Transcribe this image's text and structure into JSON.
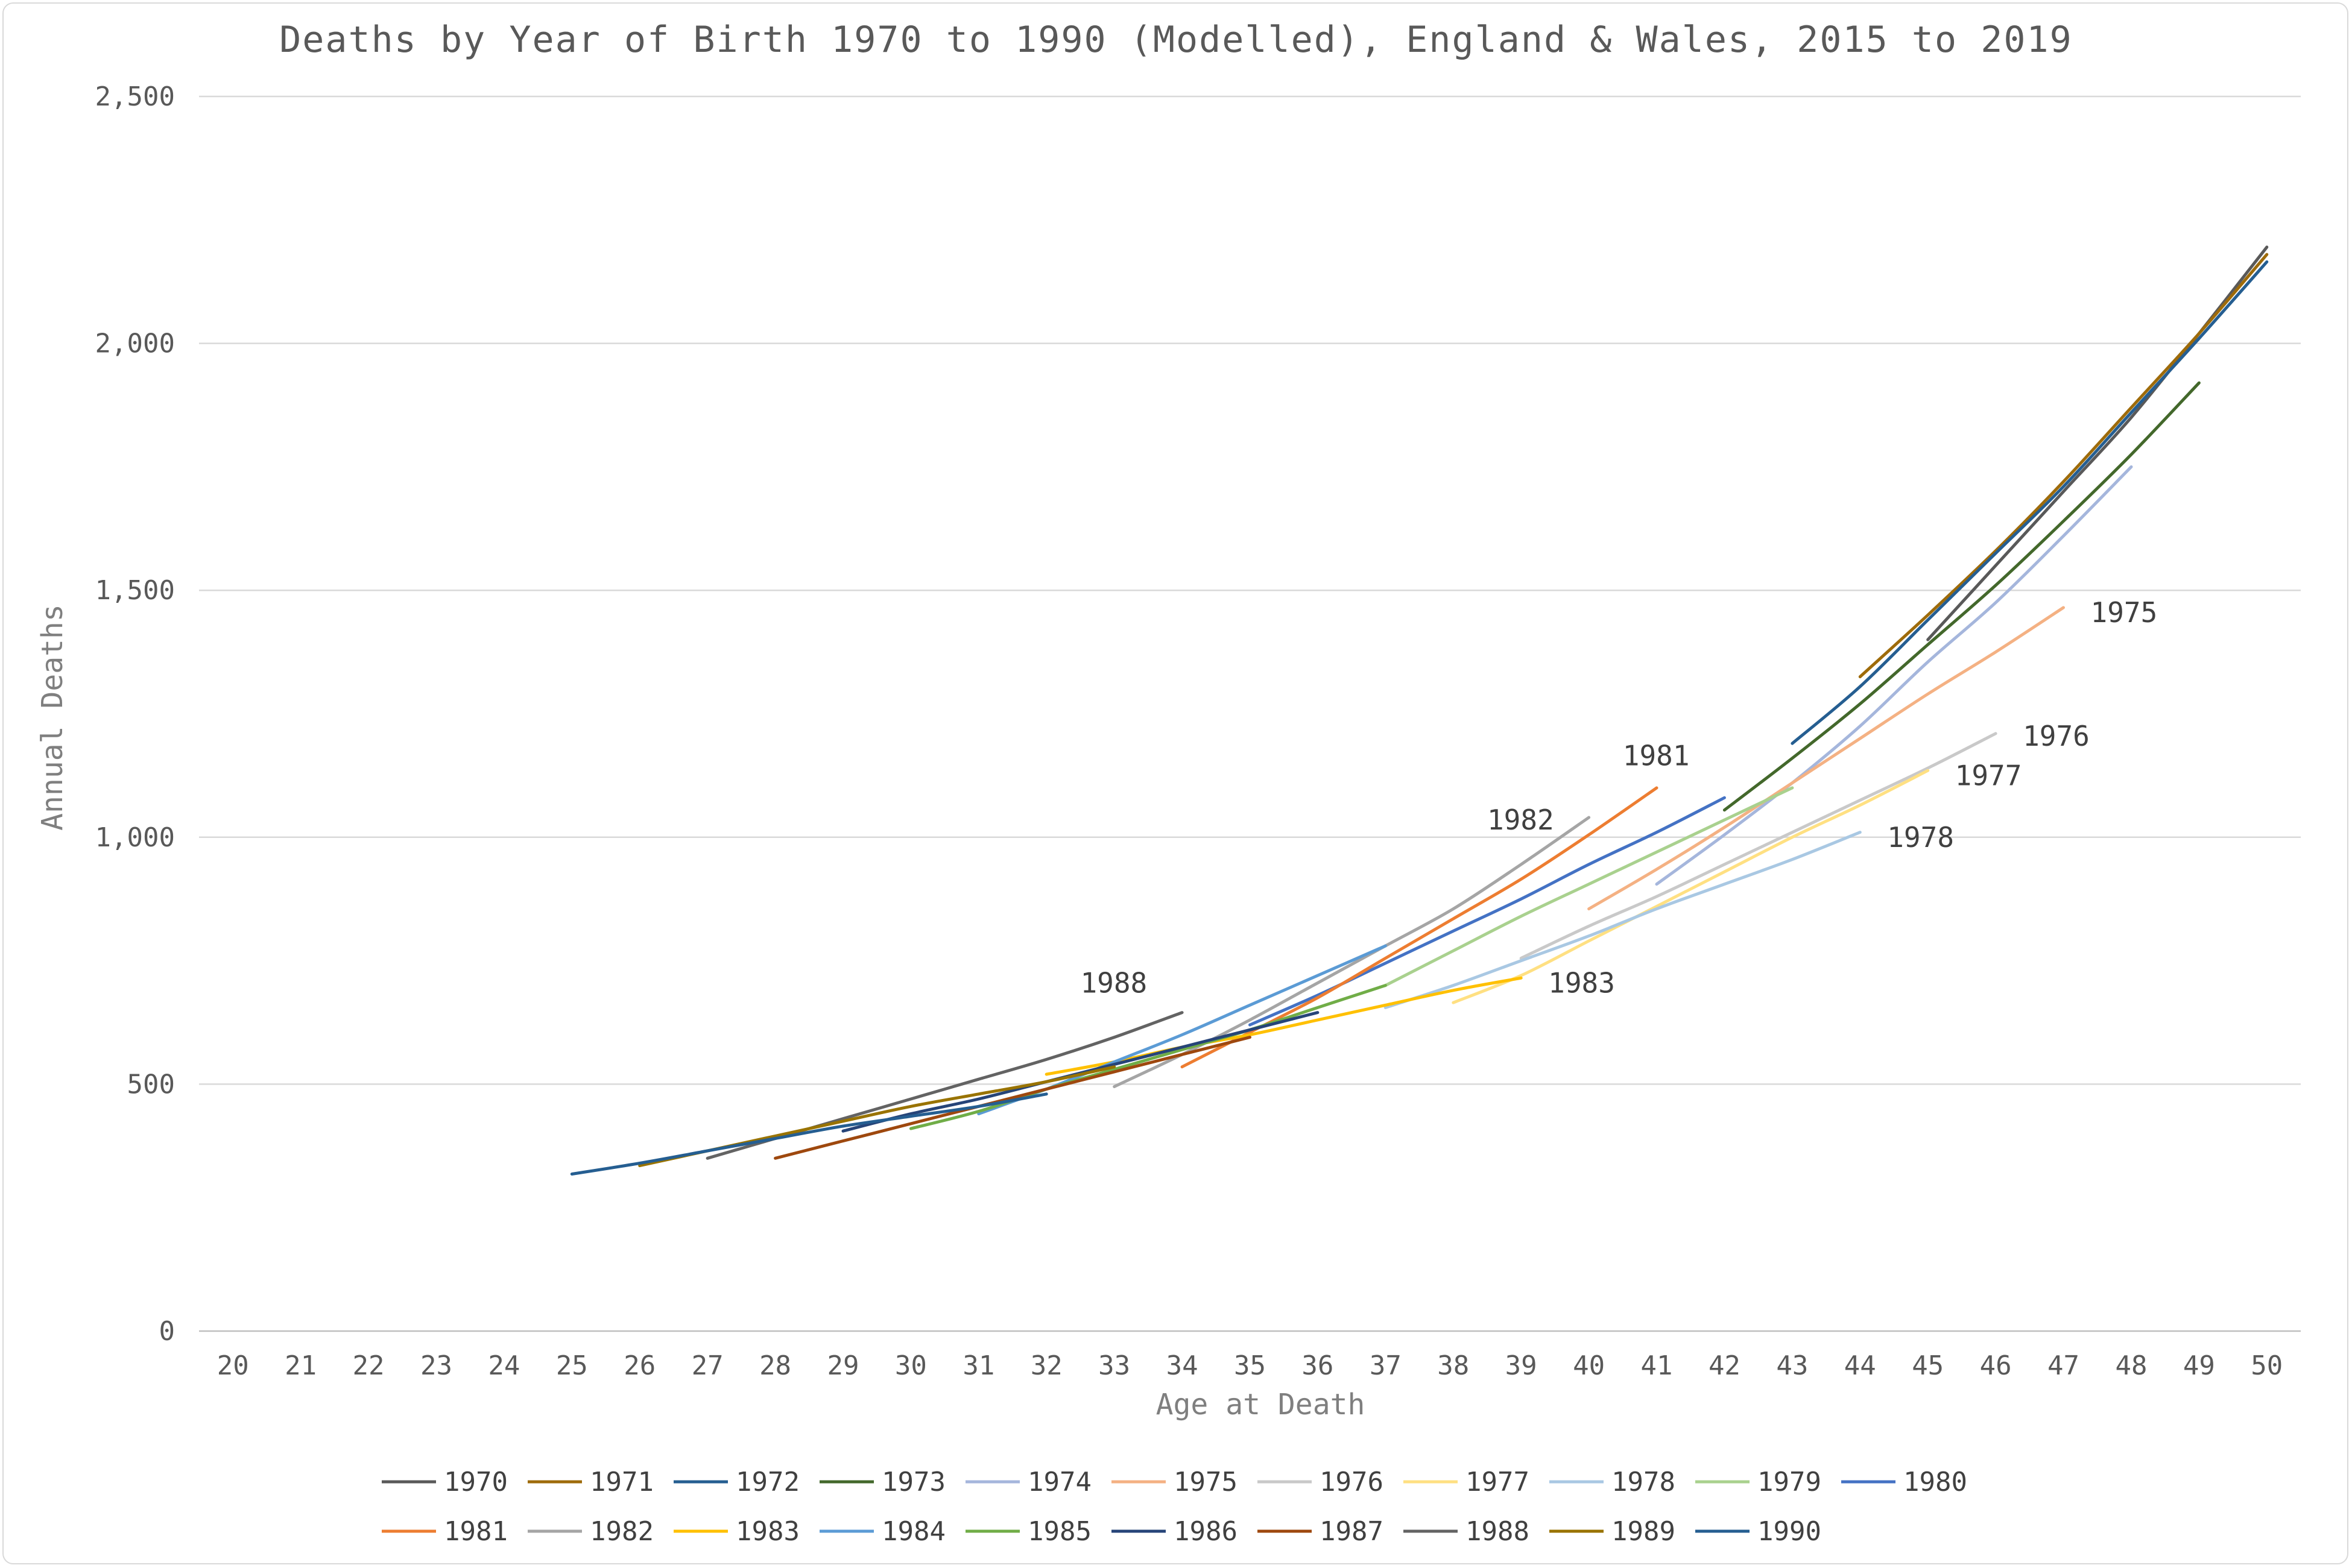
{
  "chart_data": {
    "type": "line",
    "title": "Deaths by Year of Birth 1970 to 1990 (Modelled), England & Wales, 2015 to 2019",
    "xlabel": "Age at Death",
    "ylabel": "Annual Deaths",
    "xlim": [
      20,
      50
    ],
    "ylim": [
      0,
      2500
    ],
    "x_ticks": [
      "20",
      "21",
      "22",
      "23",
      "24",
      "25",
      "26",
      "27",
      "28",
      "29",
      "30",
      "31",
      "32",
      "33",
      "34",
      "35",
      "36",
      "37",
      "38",
      "39",
      "40",
      "41",
      "42",
      "43",
      "44",
      "45",
      "46",
      "47",
      "48",
      "49",
      "50"
    ],
    "y_ticks": [
      {
        "value": 0,
        "label": "0"
      },
      {
        "value": 500,
        "label": "500"
      },
      {
        "value": 1000,
        "label": "1,000"
      },
      {
        "value": 1500,
        "label": "1,500"
      },
      {
        "value": 2000,
        "label": "2,000"
      },
      {
        "value": 2500,
        "label": "2,500"
      }
    ],
    "grid": true,
    "legend": "bottom",
    "series": [
      {
        "name": "1970",
        "color": "#595959",
        "x": [
          45,
          46,
          47,
          48,
          49,
          50
        ],
        "y": [
          1400,
          1550,
          1700,
          1850,
          2020,
          2195
        ]
      },
      {
        "name": "1971",
        "color": "#9e6b0a",
        "x": [
          44,
          45,
          46,
          47,
          48,
          49,
          50
        ],
        "y": [
          1325,
          1450,
          1580,
          1720,
          1870,
          2020,
          2180
        ]
      },
      {
        "name": "1972",
        "color": "#255e91",
        "x": [
          43,
          44,
          45,
          46,
          47,
          48,
          49,
          50
        ],
        "y": [
          1190,
          1305,
          1440,
          1575,
          1710,
          1860,
          2010,
          2165
        ]
      },
      {
        "name": "1973",
        "color": "#43682b",
        "x": [
          42,
          43,
          44,
          45,
          46,
          47,
          48,
          49
        ],
        "y": [
          1055,
          1160,
          1270,
          1390,
          1510,
          1640,
          1775,
          1920
        ]
      },
      {
        "name": "1974",
        "color": "#a5b6dc",
        "x": [
          41,
          42,
          43,
          44,
          45,
          46,
          47,
          48
        ],
        "y": [
          905,
          1005,
          1110,
          1225,
          1355,
          1475,
          1610,
          1750
        ]
      },
      {
        "name": "1975",
        "color": "#f4b183",
        "x": [
          40,
          41,
          42,
          43,
          44,
          45,
          46,
          47
        ],
        "y": [
          855,
          935,
          1020,
          1110,
          1200,
          1290,
          1375,
          1465
        ]
      },
      {
        "name": "1976",
        "color": "#c9c9c9",
        "x": [
          39,
          40,
          41,
          42,
          43,
          44,
          45,
          46
        ],
        "y": [
          755,
          820,
          880,
          945,
          1010,
          1075,
          1140,
          1210
        ]
      },
      {
        "name": "1977",
        "color": "#ffe082",
        "x": [
          38,
          39,
          40,
          41,
          42,
          43,
          44,
          45
        ],
        "y": [
          665,
          720,
          790,
          860,
          930,
          1000,
          1065,
          1135
        ]
      },
      {
        "name": "1978",
        "color": "#a9c8e3",
        "x": [
          37,
          38,
          39,
          40,
          41,
          42,
          43,
          44
        ],
        "y": [
          655,
          700,
          750,
          800,
          855,
          905,
          955,
          1010
        ]
      },
      {
        "name": "1979",
        "color": "#a9d18e",
        "x": [
          37,
          38,
          39,
          40,
          41,
          42,
          43
        ],
        "y": [
          700,
          770,
          840,
          905,
          970,
          1035,
          1100
        ]
      },
      {
        "name": "1980",
        "color": "#4472c4",
        "x": [
          35,
          36,
          37,
          38,
          39,
          40,
          41,
          42
        ],
        "y": [
          620,
          680,
          745,
          810,
          875,
          945,
          1010,
          1080
        ]
      },
      {
        "name": "1981",
        "color": "#ed7d31",
        "x": [
          34,
          35,
          36,
          37,
          38,
          39,
          40,
          41
        ],
        "y": [
          535,
          605,
          675,
          755,
          835,
          915,
          1005,
          1100
        ]
      },
      {
        "name": "1982",
        "color": "#a5a5a5",
        "x": [
          33,
          34,
          35,
          36,
          37,
          38,
          39,
          40
        ],
        "y": [
          495,
          560,
          630,
          705,
          780,
          855,
          945,
          1040
        ]
      },
      {
        "name": "1983",
        "color": "#ffc000",
        "x": [
          32,
          33,
          34,
          35,
          36,
          37,
          38,
          39
        ],
        "y": [
          520,
          545,
          575,
          600,
          630,
          660,
          690,
          715
        ]
      },
      {
        "name": "1984",
        "color": "#5b9bd5",
        "x": [
          31,
          32,
          33,
          34,
          35,
          36,
          37
        ],
        "y": [
          440,
          490,
          545,
          600,
          660,
          720,
          780
        ]
      },
      {
        "name": "1985",
        "color": "#70ad47",
        "x": [
          30,
          31,
          32,
          33,
          34,
          35,
          36,
          37
        ],
        "y": [
          410,
          445,
          490,
          530,
          570,
          610,
          655,
          700
        ]
      },
      {
        "name": "1986",
        "color": "#264478",
        "x": [
          29,
          30,
          31,
          32,
          33,
          34,
          35,
          36
        ],
        "y": [
          405,
          440,
          470,
          505,
          540,
          575,
          610,
          645
        ]
      },
      {
        "name": "1987",
        "color": "#9e480e",
        "x": [
          28,
          29,
          30,
          31,
          32,
          33,
          34,
          35
        ],
        "y": [
          350,
          385,
          420,
          455,
          490,
          525,
          560,
          595
        ]
      },
      {
        "name": "1988",
        "color": "#636363",
        "x": [
          27,
          28,
          29,
          30,
          31,
          32,
          33,
          34
        ],
        "y": [
          350,
          390,
          430,
          470,
          510,
          550,
          595,
          645
        ]
      },
      {
        "name": "1989",
        "color": "#997300",
        "x": [
          26,
          27,
          28,
          29,
          30,
          31,
          32,
          33
        ],
        "y": [
          335,
          365,
          395,
          425,
          455,
          480,
          505,
          535
        ]
      },
      {
        "name": "1990",
        "color": "#255e91",
        "x": [
          25,
          26,
          27,
          28,
          29,
          30,
          31,
          32
        ],
        "y": [
          318,
          340,
          365,
          390,
          415,
          435,
          455,
          480
        ]
      }
    ],
    "annotations": [
      {
        "text": "1975",
        "x": 47.4,
        "y": 1455
      },
      {
        "text": "1976",
        "x": 46.4,
        "y": 1205
      },
      {
        "text": "1977",
        "x": 45.4,
        "y": 1125
      },
      {
        "text": "1978",
        "x": 44.4,
        "y": 1000
      },
      {
        "text": "1981",
        "x": 40.5,
        "y": 1165
      },
      {
        "text": "1982",
        "x": 38.5,
        "y": 1035
      },
      {
        "text": "1983",
        "x": 39.4,
        "y": 705
      },
      {
        "text": "1988",
        "x": 32.5,
        "y": 705
      }
    ]
  }
}
